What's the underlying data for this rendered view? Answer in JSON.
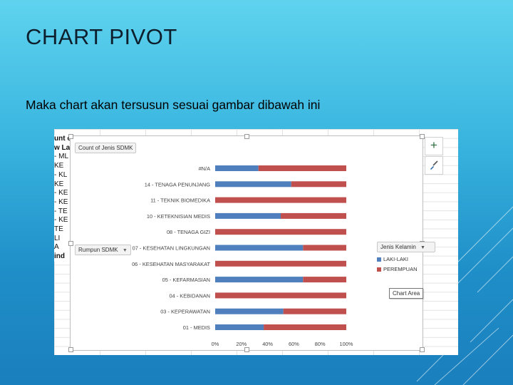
{
  "slide": {
    "title": "CHART PIVOT",
    "subtitle": "Maka chart akan tersusun sesuai gambar dibawah ini"
  },
  "excel": {
    "left_column_fragments": [
      "unt c",
      "w La",
      "- ML",
      "KE",
      "- KL",
      "KE",
      "- KE",
      "- KE",
      "- TE",
      "- KE",
      "TE",
      "LI",
      "A",
      "ind"
    ],
    "field_buttons": {
      "value_field": "Count of Jenis SDMK",
      "axis_field": "Rumpun SDMK"
    },
    "tooltip": "Chart Area",
    "side_buttons": {
      "add": "+",
      "style": "brush-icon"
    }
  },
  "chart_data": {
    "type": "bar",
    "orientation": "horizontal",
    "stacked": "100%",
    "categories": [
      "#N/A",
      "14 - TENAGA PENUNJANG",
      "11 - TEKNIK BIOMEDIKA",
      "10 - KETEKNISIAN MEDIS",
      "08 - TENAGA GIZI",
      "07 - KESEHATAN LINGKUNGAN",
      "06 - KESEHATAN MASYARAKAT",
      "05 - KEFARMASIAN",
      "04 - KEBIDANAN",
      "03 - KEPERAWATAN",
      "01 - MEDIS"
    ],
    "series": [
      {
        "name": "LAKI-LAKI",
        "values": [
          33,
          58,
          0,
          50,
          0,
          67,
          0,
          67,
          0,
          52,
          37
        ]
      },
      {
        "name": "PEREMPUAN",
        "values": [
          67,
          42,
          100,
          50,
          100,
          33,
          100,
          33,
          100,
          48,
          63
        ]
      }
    ],
    "xtick_labels": [
      "0%",
      "20%",
      "40%",
      "60%",
      "80%",
      "100%"
    ],
    "xlim": [
      0,
      100
    ],
    "legend_title": "Jenis Kelamin",
    "legend_position": "right",
    "grid": false,
    "colors": {
      "LAKI-LAKI": "#4f7fbd",
      "PEREMPUAN": "#c0504d"
    }
  }
}
